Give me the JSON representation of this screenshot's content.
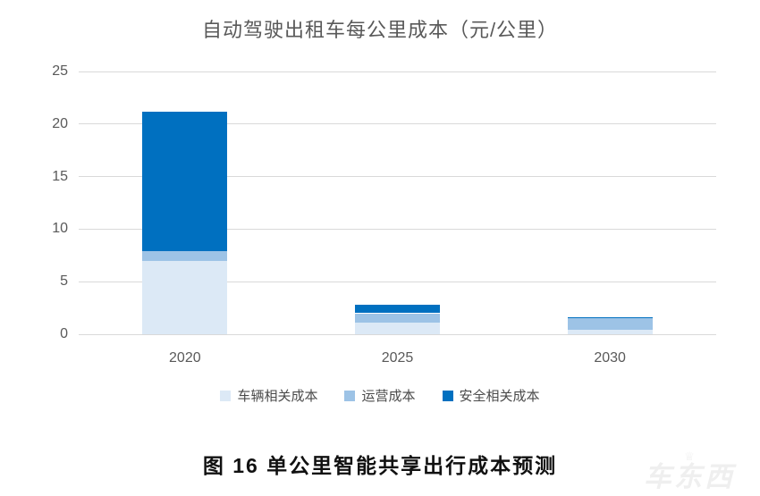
{
  "chart_data": {
    "type": "bar",
    "stacked": true,
    "title": "自动驾驶出租车每公里成本（元/公里）",
    "categories": [
      "2020",
      "2025",
      "2030"
    ],
    "series": [
      {
        "name": "车辆相关成本",
        "color": "#DCE9F6",
        "values": [
          7.0,
          1.1,
          0.45
        ]
      },
      {
        "name": "运营成本",
        "color": "#9DC3E6",
        "values": [
          0.9,
          0.9,
          1.05
        ]
      },
      {
        "name": "安全相关成本",
        "color": "#0070C0",
        "values": [
          13.3,
          0.8,
          0.1
        ]
      }
    ],
    "totals": [
      21.2,
      2.8,
      1.6
    ],
    "xlabel": "",
    "ylabel": "",
    "ylim": [
      0,
      25
    ],
    "yticks": [
      0,
      5,
      10,
      15,
      20,
      25
    ],
    "grid": true,
    "legend_position": "bottom",
    "gridline_color": "#D9D9D9",
    "axis_text_color": "#595959"
  },
  "caption": {
    "text": "图 16 单公里智能共享出行成本预测"
  },
  "watermark": {
    "text": "车东西",
    "crown_icon": "♕"
  }
}
